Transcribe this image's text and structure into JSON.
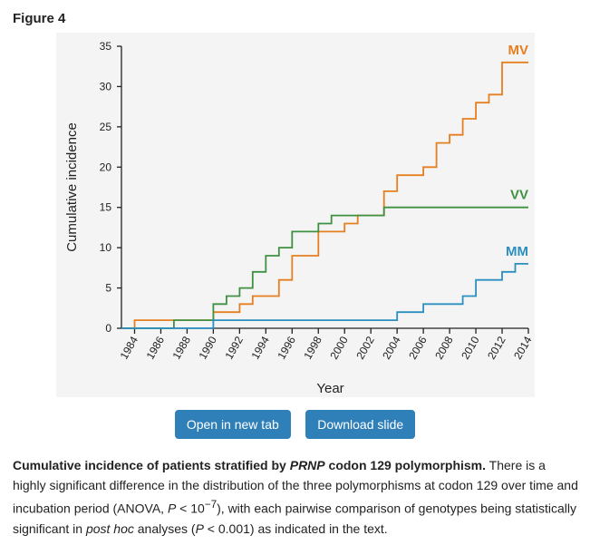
{
  "figure": {
    "label": "Figure 4"
  },
  "buttons": {
    "open": "Open in new tab",
    "download": "Download slide"
  },
  "caption": {
    "title_pre": "Cumulative incidence of patients stratified by ",
    "title_gene": "PRNP",
    "title_post": " codon 129 polymorphism.",
    "t1": " There is a highly significant difference in the distribution of the three polymorphisms at codon 129 over time and incubation period (ANOVA, ",
    "p1": "P",
    "t2": " < 10",
    "exp": "−7",
    "t3": "), with each pairwise comparison of genotypes being statistically significant in ",
    "posthoc": "post hoc",
    "t4": " analyses (",
    "p2": "P",
    "t5": " < 0.001) as indicated in the text."
  },
  "chart_data": {
    "type": "line",
    "step": true,
    "xlabel": "Year",
    "ylabel": "Cumulative incidence",
    "xlim": [
      1983,
      2014
    ],
    "ylim": [
      0,
      35
    ],
    "xticks": [
      1984,
      1986,
      1988,
      1990,
      1992,
      1994,
      1996,
      1998,
      2000,
      2002,
      2004,
      2006,
      2008,
      2010,
      2012,
      2014
    ],
    "yticks": [
      0,
      5,
      10,
      15,
      20,
      25,
      30,
      35
    ],
    "grid": false,
    "series": [
      {
        "name": "MV",
        "color": "#e57f1f",
        "points": [
          [
            1983,
            0
          ],
          [
            1984,
            1
          ],
          [
            1990,
            2
          ],
          [
            1992,
            3
          ],
          [
            1993,
            4
          ],
          [
            1995,
            6
          ],
          [
            1996,
            9
          ],
          [
            1998,
            12
          ],
          [
            2000,
            13
          ],
          [
            2001,
            14
          ],
          [
            2003,
            17
          ],
          [
            2004,
            19
          ],
          [
            2006,
            20
          ],
          [
            2007,
            23
          ],
          [
            2008,
            24
          ],
          [
            2009,
            26
          ],
          [
            2010,
            28
          ],
          [
            2011,
            29
          ],
          [
            2012,
            33
          ],
          [
            2014,
            33
          ]
        ]
      },
      {
        "name": "VV",
        "color": "#3f9142",
        "points": [
          [
            1983,
            0
          ],
          [
            1987,
            1
          ],
          [
            1990,
            3
          ],
          [
            1991,
            4
          ],
          [
            1992,
            5
          ],
          [
            1993,
            7
          ],
          [
            1994,
            9
          ],
          [
            1995,
            10
          ],
          [
            1996,
            12
          ],
          [
            1998,
            13
          ],
          [
            1999,
            14
          ],
          [
            2003,
            15
          ],
          [
            2014,
            15
          ]
        ]
      },
      {
        "name": "MM",
        "color": "#2b8fbf",
        "points": [
          [
            1983,
            0
          ],
          [
            1990,
            1
          ],
          [
            2004,
            2
          ],
          [
            2006,
            3
          ],
          [
            2009,
            4
          ],
          [
            2010,
            6
          ],
          [
            2012,
            7
          ],
          [
            2013,
            8
          ],
          [
            2014,
            8
          ]
        ]
      }
    ]
  }
}
